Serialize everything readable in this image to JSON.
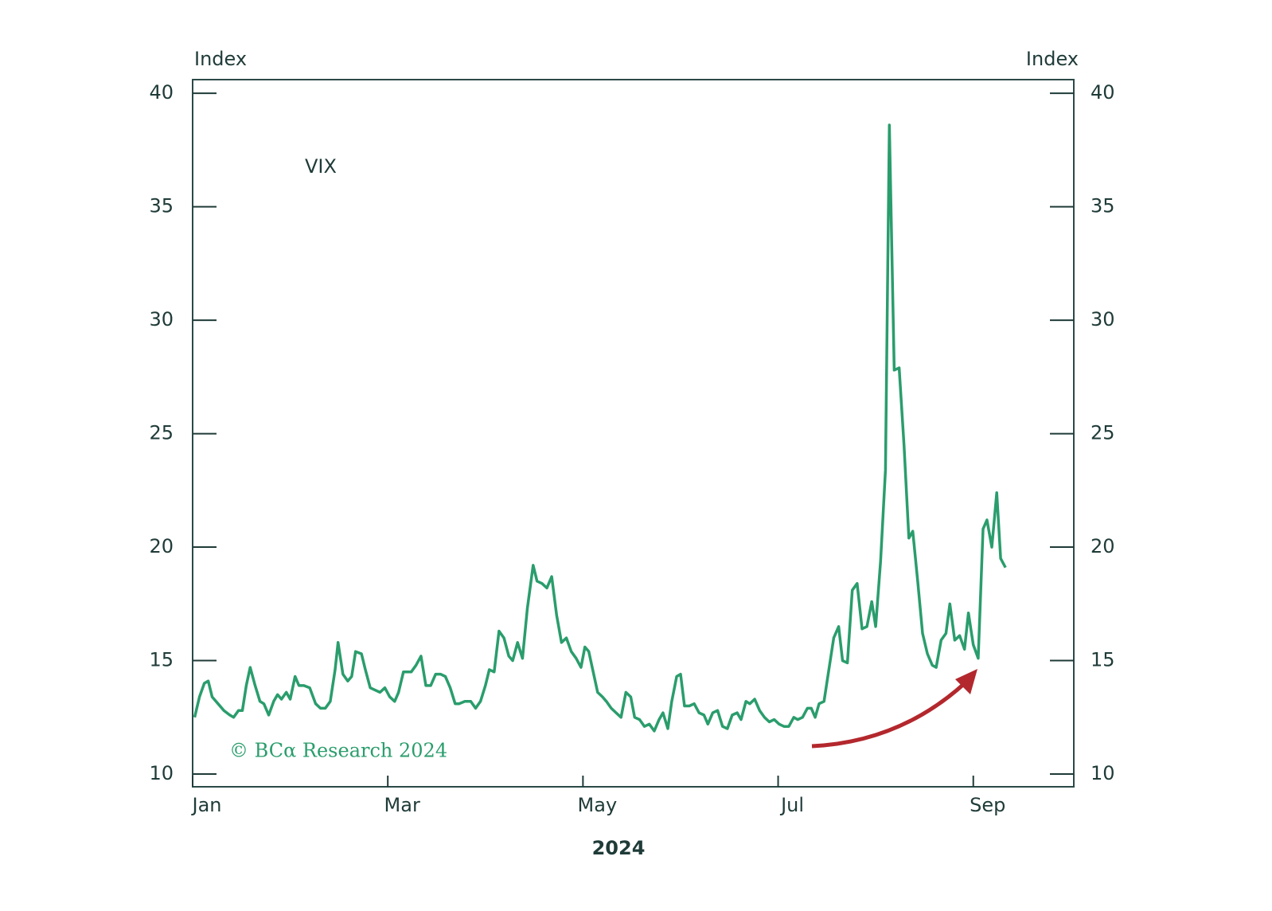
{
  "chart_data": {
    "type": "line",
    "y_label_left": "Index",
    "y_label_right": "Index",
    "x_label": "2024",
    "source": "© BCα Research 2024",
    "x": [
      0.02,
      0.07,
      0.12,
      0.16,
      0.2,
      0.26,
      0.32,
      0.38,
      0.42,
      0.47,
      0.51,
      0.55,
      0.59,
      0.64,
      0.69,
      0.73,
      0.78,
      0.83,
      0.87,
      0.91,
      0.96,
      1.0,
      1.05,
      1.09,
      1.14,
      1.2,
      1.26,
      1.31,
      1.36,
      1.41,
      1.46,
      1.49,
      1.54,
      1.59,
      1.63,
      1.67,
      1.73,
      1.77,
      1.82,
      1.87,
      1.92,
      1.97,
      2.02,
      2.07,
      2.11,
      2.16,
      2.2,
      2.24,
      2.29,
      2.34,
      2.39,
      2.44,
      2.49,
      2.54,
      2.59,
      2.64,
      2.69,
      2.73,
      2.79,
      2.85,
      2.9,
      2.95,
      3.0,
      3.04,
      3.09,
      3.14,
      3.19,
      3.24,
      3.28,
      3.33,
      3.38,
      3.43,
      3.49,
      3.53,
      3.58,
      3.63,
      3.68,
      3.73,
      3.78,
      3.83,
      3.88,
      3.93,
      3.98,
      4.02,
      4.06,
      4.1,
      4.15,
      4.2,
      4.24,
      4.29,
      4.34,
      4.39,
      4.44,
      4.49,
      4.53,
      4.58,
      4.63,
      4.68,
      4.73,
      4.78,
      4.82,
      4.87,
      4.91,
      4.96,
      5.0,
      5.04,
      5.09,
      5.14,
      5.19,
      5.24,
      5.28,
      5.33,
      5.38,
      5.43,
      5.48,
      5.53,
      5.58,
      5.62,
      5.67,
      5.71,
      5.76,
      5.81,
      5.86,
      5.91,
      5.96,
      6.01,
      6.06,
      6.11,
      6.16,
      6.2,
      6.25,
      6.3,
      6.34,
      6.38,
      6.42,
      6.47,
      6.52,
      6.57,
      6.62,
      6.66,
      6.71,
      6.76,
      6.81,
      6.86,
      6.91,
      6.96,
      7.0,
      7.05,
      7.1,
      7.14,
      7.19,
      7.24,
      7.29,
      7.34,
      7.38,
      7.43,
      7.48,
      7.53,
      7.58,
      7.62,
      7.67,
      7.72,
      7.76,
      7.81,
      7.86,
      7.91,
      7.95,
      8.0,
      8.05,
      8.1,
      8.14,
      8.19,
      8.24,
      8.28,
      8.33
    ],
    "series": [
      {
        "name": "VIX",
        "color": "#2a9d6c",
        "values": [
          12.5,
          13.4,
          14.0,
          14.1,
          13.4,
          13.1,
          12.8,
          12.6,
          12.5,
          12.8,
          12.8,
          13.9,
          14.7,
          13.9,
          13.2,
          13.1,
          12.6,
          13.2,
          13.5,
          13.3,
          13.6,
          13.3,
          14.3,
          13.9,
          13.9,
          13.8,
          13.1,
          12.9,
          12.9,
          13.2,
          14.6,
          15.8,
          14.4,
          14.1,
          14.3,
          15.4,
          15.3,
          14.6,
          13.8,
          13.7,
          13.6,
          13.8,
          13.4,
          13.2,
          13.6,
          14.5,
          14.5,
          14.5,
          14.8,
          15.2,
          13.9,
          13.9,
          14.4,
          14.4,
          14.3,
          13.8,
          13.1,
          13.1,
          13.2,
          13.2,
          12.9,
          13.2,
          13.9,
          14.6,
          14.5,
          16.3,
          16.0,
          15.2,
          15.0,
          15.8,
          15.1,
          17.3,
          19.2,
          18.5,
          18.4,
          18.2,
          18.7,
          17.0,
          15.8,
          16.0,
          15.4,
          15.1,
          14.7,
          15.6,
          15.4,
          14.6,
          13.6,
          13.4,
          13.2,
          12.9,
          12.7,
          12.5,
          13.6,
          13.4,
          12.5,
          12.4,
          12.1,
          12.2,
          11.9,
          12.4,
          12.7,
          12.0,
          13.2,
          14.3,
          14.4,
          13.0,
          13.0,
          13.1,
          12.7,
          12.6,
          12.2,
          12.7,
          12.8,
          12.1,
          12.0,
          12.6,
          12.7,
          12.4,
          13.2,
          13.1,
          13.3,
          12.8,
          12.5,
          12.3,
          12.4,
          12.2,
          12.1,
          12.1,
          12.5,
          12.4,
          12.5,
          12.9,
          12.9,
          12.5,
          13.1,
          13.2,
          14.6,
          16.0,
          16.5,
          15.0,
          14.9,
          18.1,
          18.4,
          16.4,
          16.5,
          17.6,
          16.5,
          19.4,
          23.4,
          38.6,
          27.8,
          27.9,
          24.5,
          20.4,
          20.7,
          18.5,
          16.2,
          15.3,
          14.8,
          14.7,
          15.9,
          16.2,
          17.5,
          15.9,
          16.1,
          15.5,
          17.1,
          15.7,
          15.1,
          20.8,
          21.2,
          20.0,
          22.4,
          19.5,
          19.1
        ]
      }
    ],
    "xlim": [
      0,
      9.03
    ],
    "xticks": [
      {
        "value": 0,
        "label": "Jan"
      },
      {
        "value": 2,
        "label": "Mar"
      },
      {
        "value": 4,
        "label": "May"
      },
      {
        "value": 6,
        "label": "Jul"
      },
      {
        "value": 8,
        "label": "Sep"
      }
    ],
    "ylim": [
      9.44,
      40.6
    ],
    "yticks": [
      10,
      15,
      20,
      25,
      30,
      35,
      40
    ]
  }
}
